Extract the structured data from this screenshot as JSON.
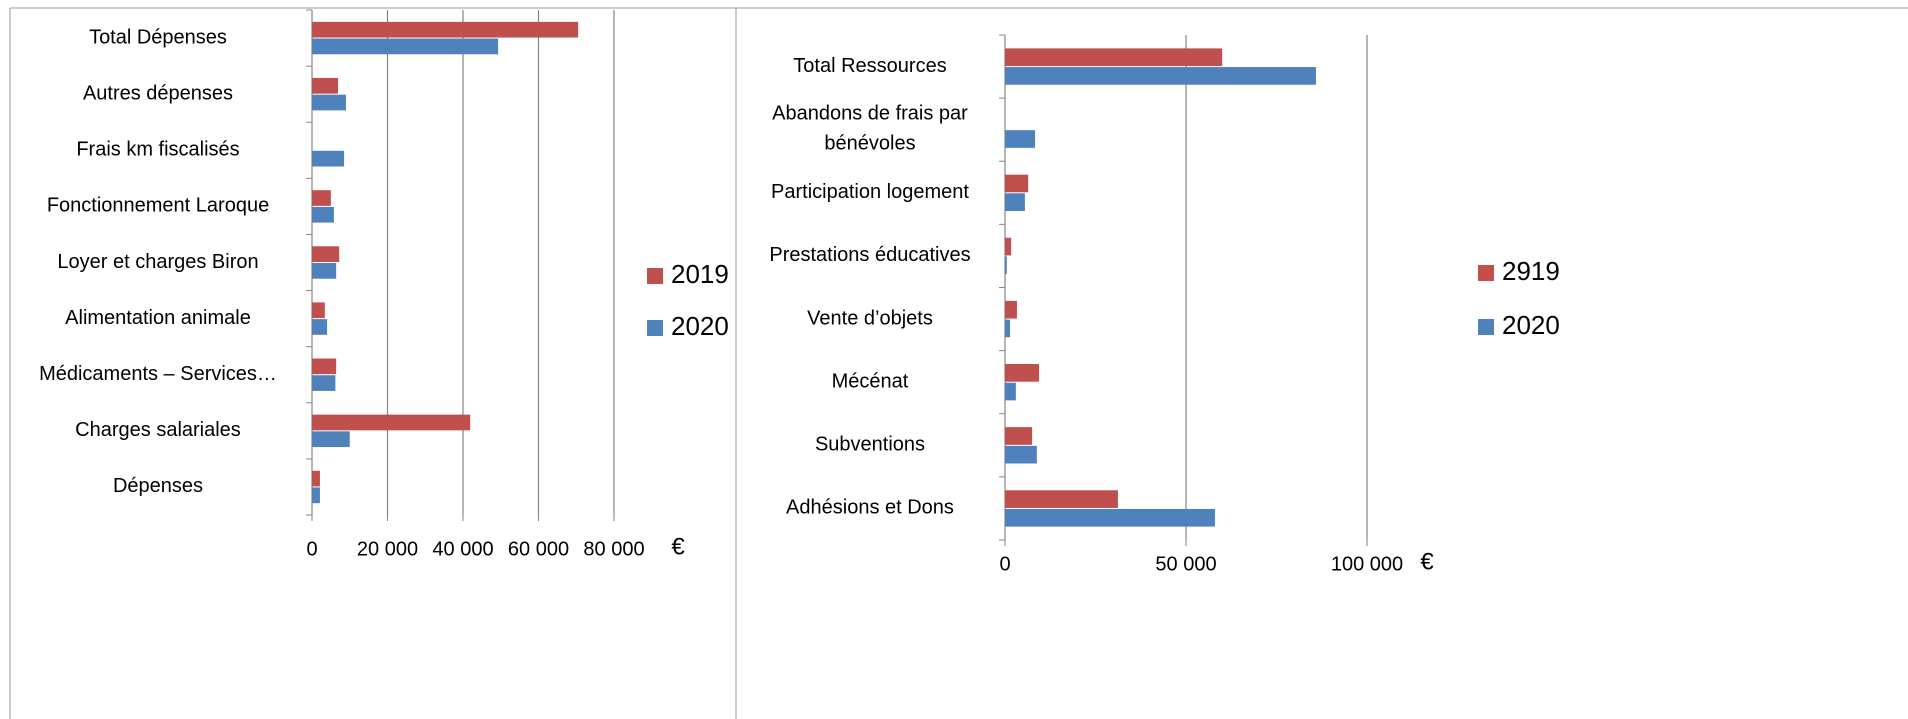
{
  "chart_data": [
    {
      "type": "barh",
      "categories": [
        "Total Dépenses",
        "Autres dépenses",
        "Frais km fiscalisés",
        "Fonctionnement Laroque",
        "Loyer et charges Biron",
        "Alimentation animale",
        "Médicaments – Services…",
        "Charges salariales",
        "Dépenses"
      ],
      "series": [
        {
          "name": "2019",
          "color": "#c0504d",
          "values": [
            70500,
            6900,
            0,
            5000,
            7200,
            3400,
            6400,
            41900,
            2100
          ]
        },
        {
          "name": "2020",
          "color": "#4f81bd",
          "values": [
            49300,
            9000,
            8500,
            5800,
            6400,
            4000,
            6200,
            10000,
            2100
          ]
        }
      ],
      "xlim": [
        0,
        80000
      ],
      "xticks": [
        0,
        {
          "value": 20000,
          "label": "20 000"
        },
        {
          "value": 40000,
          "label": "40 000"
        },
        {
          "value": 60000,
          "label": "60 000"
        },
        {
          "value": 80000,
          "label": "80 000"
        }
      ],
      "x_label": "€",
      "grid": true,
      "legend": "right"
    },
    {
      "type": "barh",
      "categories": [
        "Total Ressources",
        "Abandons de frais par bénévoles",
        "Participation logement",
        "Prestations éducatives",
        "Vente d’objets",
        "Mécénat",
        "Subventions",
        "Adhésions et Dons"
      ],
      "series": [
        {
          "name": "2919",
          "color": "#c0504d",
          "values": [
            60000,
            0,
            6400,
            1700,
            3300,
            9400,
            7500,
            31200
          ]
        },
        {
          "name": "2020",
          "color": "#4f81bd",
          "values": [
            85900,
            8300,
            5500,
            500,
            1400,
            3000,
            8800,
            58000
          ]
        }
      ],
      "xlim": [
        0,
        100000
      ],
      "xticks": [
        0,
        {
          "value": 50000,
          "label": "50 000"
        },
        {
          "value": 100000,
          "label": "100 000"
        }
      ],
      "x_label": "€",
      "grid": true,
      "legend": "right"
    }
  ]
}
